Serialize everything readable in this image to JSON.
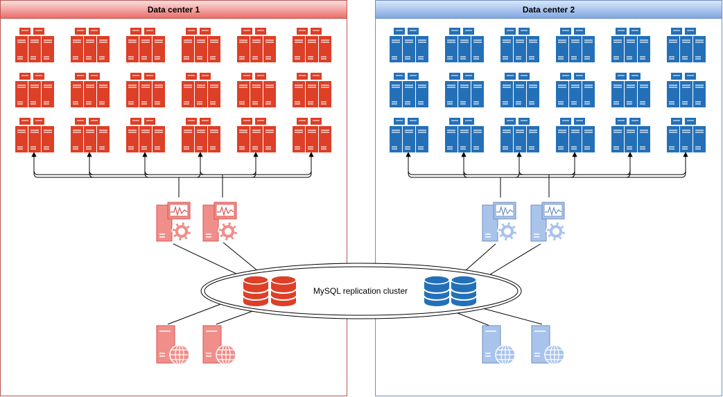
{
  "datacenters": [
    {
      "title": "Data center 1",
      "colors": {
        "border": "#b85450",
        "header_top": "#fbe3e2",
        "header_bottom": "#ea6b66",
        "rack": "#dd3f27",
        "monitor_fill": "#f08e8a",
        "monitor_stroke": "#d9534f",
        "db": "#dd3f27",
        "web_fill": "#f08e8a",
        "web_stroke": "#d9534f"
      },
      "rack_rows": 3,
      "rack_cols": 6,
      "monitor_server_count": 2,
      "db_count": 2,
      "web_server_count": 2
    },
    {
      "title": "Data center 2",
      "colors": {
        "border": "#6c8ebf",
        "header_top": "#dae8fc",
        "header_bottom": "#7ea6e0",
        "rack": "#2470b8",
        "monitor_fill": "#a9c4eb",
        "monitor_stroke": "#6c8ebf",
        "db": "#2470b8",
        "web_fill": "#a9c4eb",
        "web_stroke": "#6c8ebf"
      },
      "rack_rows": 3,
      "rack_cols": 6,
      "monitor_server_count": 2,
      "db_count": 2,
      "web_server_count": 2
    }
  ],
  "cluster": {
    "label": "MySQL replication cluster"
  },
  "icons": {
    "rack": "server-rack-icon",
    "monitor_server": "monitoring-server-icon",
    "database": "database-icon",
    "web_server": "web-server-icon"
  }
}
